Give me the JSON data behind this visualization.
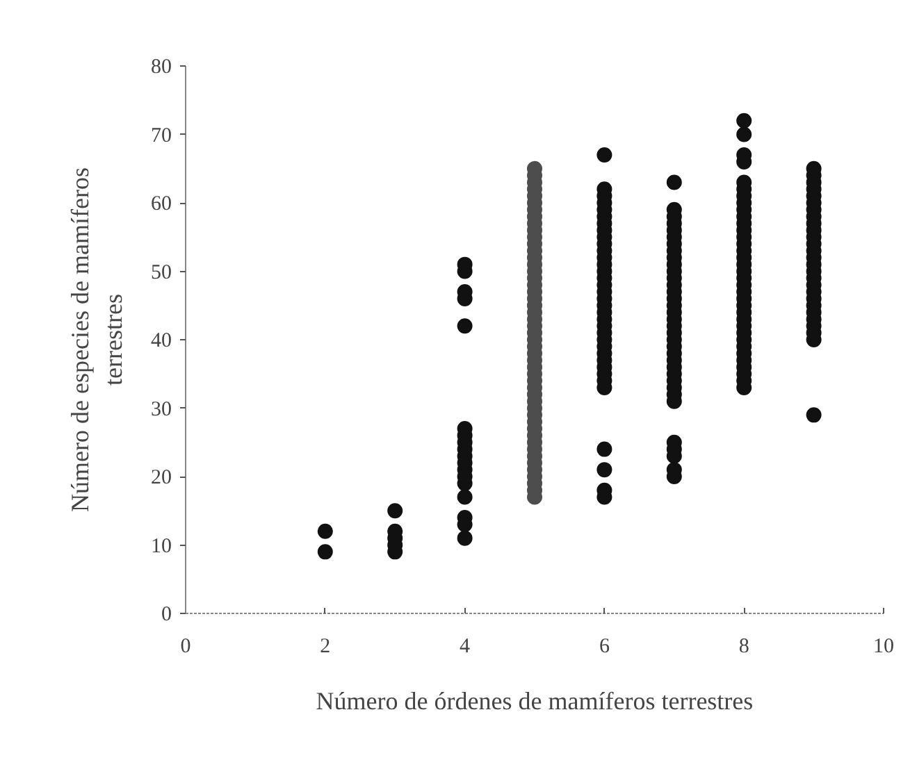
{
  "chart_data": {
    "type": "scatter",
    "xlabel": "Número de órdenes de mamíferos terrestres",
    "ylabel": "Número de especies de mamíferos terrestres",
    "xlim": [
      0,
      10
    ],
    "xticks": [
      0,
      2,
      4,
      6,
      8,
      10
    ],
    "ylim": [
      0,
      80
    ],
    "yticks": [
      0,
      10,
      20,
      30,
      40,
      50,
      60,
      70,
      80
    ],
    "grid": false,
    "marker": "circle",
    "series": [
      {
        "color": "#111111",
        "x": [
          2,
          2,
          3,
          3,
          3,
          3,
          3,
          4,
          4,
          4,
          4,
          4,
          4,
          4,
          4,
          4,
          4,
          4,
          4,
          4,
          4,
          4,
          4,
          4,
          4
        ],
        "values": [
          9,
          12,
          9,
          10,
          11,
          12,
          15,
          11,
          13,
          14,
          17,
          19,
          20,
          21,
          22,
          23,
          24,
          25,
          26,
          27,
          42,
          46,
          47,
          50,
          51
        ]
      },
      {
        "color": "#4d4d4d",
        "x": [
          5,
          5,
          5,
          5,
          5,
          5,
          5,
          5,
          5,
          5,
          5,
          5,
          5,
          5,
          5,
          5,
          5,
          5,
          5,
          5,
          5,
          5,
          5,
          5,
          5,
          5,
          5,
          5,
          5,
          5,
          5,
          5,
          5,
          5,
          5,
          5,
          5,
          5,
          5,
          5,
          5,
          5,
          5,
          5,
          5,
          5,
          5,
          5,
          5
        ],
        "values": [
          17,
          18,
          19,
          20,
          21,
          22,
          23,
          24,
          25,
          26,
          27,
          28,
          29,
          30,
          31,
          32,
          33,
          34,
          35,
          36,
          37,
          38,
          39,
          40,
          41,
          42,
          43,
          44,
          45,
          46,
          47,
          48,
          49,
          50,
          51,
          52,
          53,
          54,
          55,
          56,
          57,
          58,
          59,
          60,
          61,
          62,
          63,
          64,
          65
        ]
      },
      {
        "color": "#111111",
        "x": [
          6,
          6,
          6,
          6,
          6,
          6,
          6,
          6,
          6,
          6,
          6,
          6,
          6,
          6,
          6,
          6,
          6,
          6,
          6,
          6,
          6,
          6,
          6,
          6,
          6,
          6,
          6,
          6,
          6,
          6,
          6,
          6,
          6,
          6,
          6
        ],
        "values": [
          17,
          18,
          21,
          24,
          33,
          34,
          35,
          36,
          37,
          38,
          39,
          40,
          41,
          42,
          43,
          44,
          45,
          46,
          47,
          48,
          49,
          50,
          51,
          52,
          53,
          54,
          55,
          56,
          57,
          58,
          59,
          60,
          61,
          62,
          67
        ]
      },
      {
        "color": "#111111",
        "x": [
          7,
          7,
          7,
          7,
          7,
          7,
          7,
          7,
          7,
          7,
          7,
          7,
          7,
          7,
          7,
          7,
          7,
          7,
          7,
          7,
          7,
          7,
          7,
          7,
          7,
          7,
          7,
          7,
          7,
          7,
          7,
          7,
          7,
          7,
          7
        ],
        "values": [
          20,
          21,
          23,
          24,
          25,
          31,
          32,
          33,
          34,
          35,
          36,
          37,
          38,
          39,
          40,
          41,
          42,
          43,
          44,
          45,
          46,
          47,
          48,
          49,
          50,
          51,
          52,
          53,
          54,
          55,
          56,
          57,
          58,
          59,
          63
        ]
      },
      {
        "color": "#111111",
        "x": [
          8,
          8,
          8,
          8,
          8,
          8,
          8,
          8,
          8,
          8,
          8,
          8,
          8,
          8,
          8,
          8,
          8,
          8,
          8,
          8,
          8,
          8,
          8,
          8,
          8,
          8,
          8,
          8,
          8,
          8,
          8,
          8,
          8,
          8,
          8
        ],
        "values": [
          33,
          34,
          35,
          36,
          37,
          38,
          39,
          40,
          41,
          42,
          43,
          44,
          45,
          46,
          47,
          48,
          49,
          50,
          51,
          52,
          53,
          54,
          55,
          56,
          57,
          58,
          59,
          60,
          61,
          62,
          63,
          66,
          67,
          70,
          72
        ]
      },
      {
        "color": "#111111",
        "x": [
          9,
          9,
          9,
          9,
          9,
          9,
          9,
          9,
          9,
          9,
          9,
          9,
          9,
          9,
          9,
          9,
          9,
          9,
          9,
          9,
          9,
          9,
          9,
          9,
          9,
          9,
          9
        ],
        "values": [
          29,
          40,
          41,
          42,
          43,
          44,
          45,
          46,
          47,
          48,
          49,
          50,
          51,
          52,
          53,
          54,
          55,
          56,
          57,
          58,
          59,
          60,
          61,
          62,
          63,
          64,
          65
        ]
      }
    ]
  }
}
